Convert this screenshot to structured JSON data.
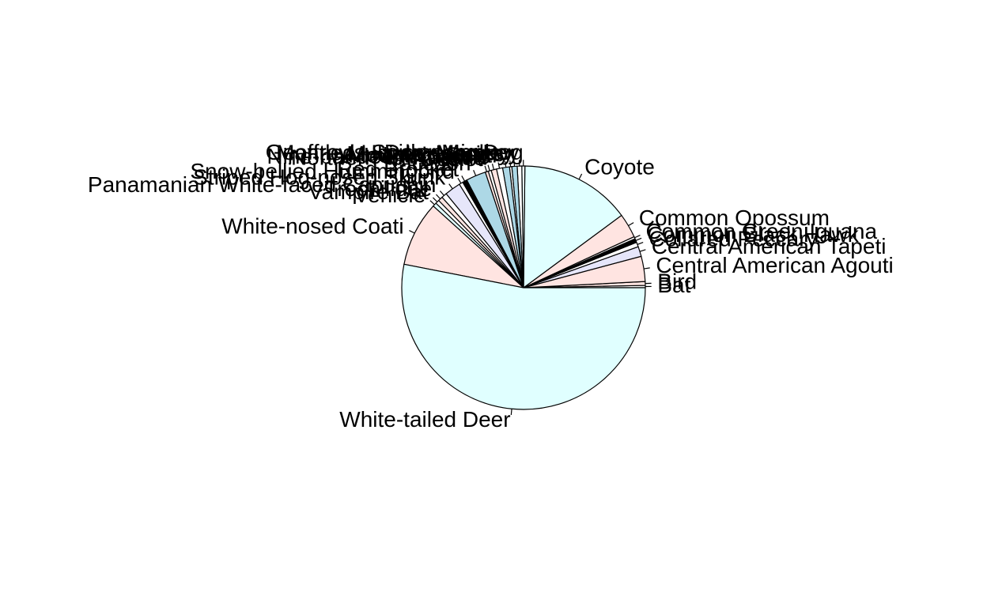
{
  "chart_data": {
    "type": "pie",
    "title": "",
    "start": "3 o'clock",
    "direction": "counter-clockwise",
    "slices": [
      {
        "label": "Bat",
        "value": 0.3,
        "color": "#FFFFFF"
      },
      {
        "label": "Bird",
        "value": 0.5,
        "color": "#FFE4E1"
      },
      {
        "label": "Central American Agouti",
        "value": 3.3,
        "color": "#FFE4E1"
      },
      {
        "label": "Central American Tapeti",
        "value": 1.3,
        "color": "#E6E6FA"
      },
      {
        "label": "Collared Peccary",
        "value": 0.6,
        "color": "#FFFFFF"
      },
      {
        "label": "Common Black Hawk",
        "value": 0.5,
        "color": "#000000"
      },
      {
        "label": "Common Green Iguana",
        "value": 0.3,
        "color": "#FFFFFF"
      },
      {
        "label": "Common Opossum",
        "value": 3.2,
        "color": "#FFE4E1"
      },
      {
        "label": "Coyote",
        "value": 14.5,
        "color": "#E0FFFF"
      },
      {
        "label": "Domestic Dog",
        "value": 0.4,
        "color": "#F0FFFF"
      },
      {
        "label": "Geoffroy's Spider Monkey",
        "value": 0.6,
        "color": "#FFFFFF"
      },
      {
        "label": "Mantled Howler Monkey",
        "value": 0.7,
        "color": "#ADD8E6"
      },
      {
        "label": "Margay",
        "value": 0.3,
        "color": "#FFFFFF"
      },
      {
        "label": "Multiple species",
        "value": 0.9,
        "color": "#ADD8E6"
      },
      {
        "label": "Mountain Coati",
        "value": 0.8,
        "color": "#FFFFFF"
      },
      {
        "label": "Nine-banded Armadillo",
        "value": 0.7,
        "color": "#FFE4E1"
      },
      {
        "label": "Northern Tamandua",
        "value": 0.4,
        "color": "#FFFFFF"
      },
      {
        "label": "Ocelot",
        "value": 0.4,
        "color": "#FFE4E1"
      },
      {
        "label": "Raccoon",
        "value": 2.6,
        "color": "#ADD8E6"
      },
      {
        "label": "Red Brocket",
        "value": 0.6,
        "color": "#000000"
      },
      {
        "label": "Snow-bellied Hummingbird",
        "value": 0.5,
        "color": "#FFFFFF"
      },
      {
        "label": "Striped Hog-nosed Skunk",
        "value": 2.1,
        "color": "#E6E6FA"
      },
      {
        "label": "Panamanian White-faced Capuchin",
        "value": 0.7,
        "color": "#FFFFFF"
      },
      {
        "label": "Trochilidae",
        "value": 0.6,
        "color": "#FFE4E1"
      },
      {
        "label": "Vampire Bat",
        "value": 0.5,
        "color": "#FFFFFF"
      },
      {
        "label": "Vehicle",
        "value": 0.5,
        "color": "#E0FFFF"
      },
      {
        "label": "White-nosed Coati",
        "value": 8.5,
        "color": "#FFE4E1"
      },
      {
        "label": "White-tailed Deer",
        "value": 52.4,
        "color": "#E0FFFF"
      }
    ]
  }
}
